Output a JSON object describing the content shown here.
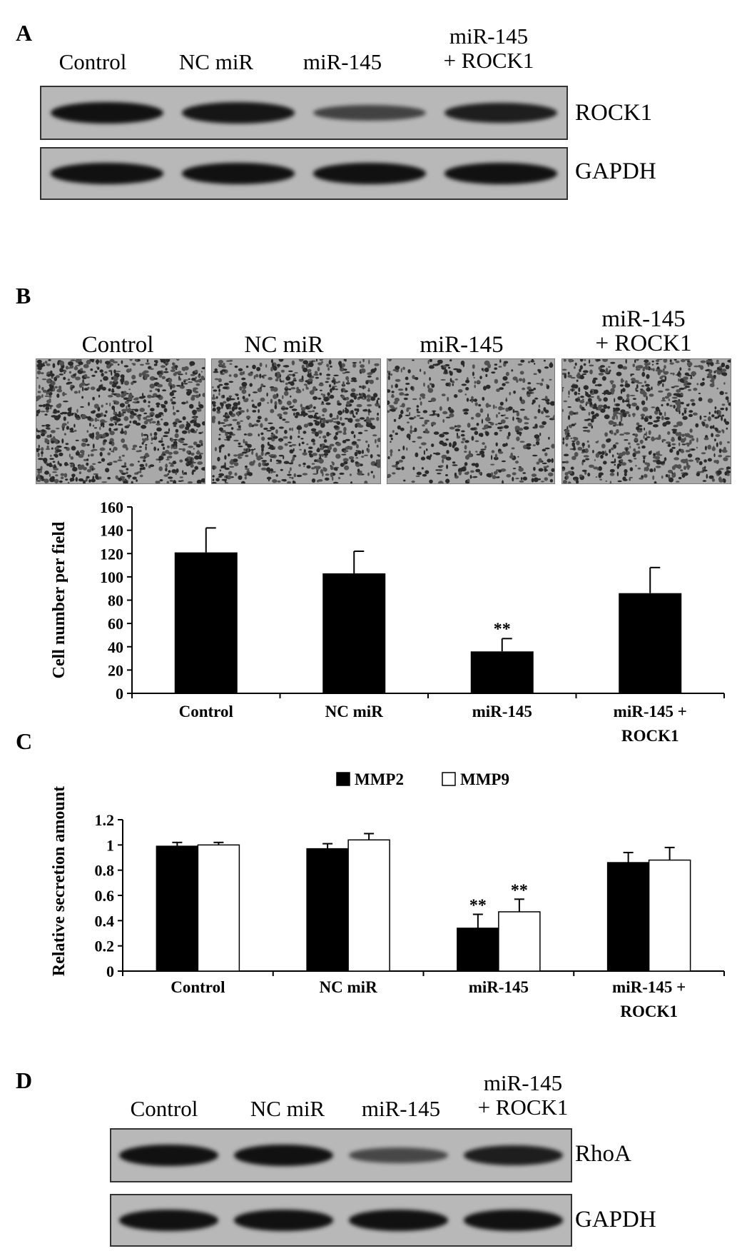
{
  "panels": {
    "A": {
      "letter": "A",
      "lanes": [
        "Control",
        "NC miR",
        "miR-145",
        "miR-145\n+ ROCK1"
      ],
      "blots": [
        {
          "label": "ROCK1",
          "intensity": [
            1.0,
            0.95,
            0.45,
            0.85
          ]
        },
        {
          "label": "GAPDH",
          "intensity": [
            1.0,
            1.0,
            1.0,
            1.0
          ]
        }
      ]
    },
    "B": {
      "letter": "B",
      "image_labels": [
        "Control",
        "NC miR",
        "miR-145",
        "miR-145\n+ ROCK1"
      ]
    },
    "C": {
      "letter": "C"
    },
    "D": {
      "letter": "D",
      "lanes": [
        "Control",
        "NC miR",
        "miR-145",
        "miR-145\n+ ROCK1"
      ],
      "blots": [
        {
          "label": "RhoA",
          "intensity": [
            1.0,
            1.0,
            0.4,
            0.85
          ]
        },
        {
          "label": "GAPDH",
          "intensity": [
            1.0,
            1.0,
            1.0,
            1.0
          ]
        }
      ]
    }
  },
  "colors": {
    "black_bar": "#000000",
    "white_bar": "#ffffff",
    "blot_bg": "#b8b8b8"
  },
  "chart_data": [
    {
      "type": "bar",
      "categories": [
        "Control",
        "NC miR",
        "miR-145",
        "miR-145 +\nROCK1"
      ],
      "values": [
        121,
        103,
        36,
        86
      ],
      "errors": [
        21,
        19,
        11,
        22
      ],
      "annotations": [
        "",
        "",
        "**",
        ""
      ],
      "ylabel": "Cell number per field",
      "xlabel": "",
      "ylim": [
        0,
        160
      ],
      "yticks": [
        0,
        20,
        40,
        60,
        80,
        100,
        120,
        140,
        160
      ],
      "grid": false
    },
    {
      "type": "bar",
      "categories": [
        "Control",
        "NC miR",
        "miR-145",
        "miR-145 +\nROCK1"
      ],
      "series": [
        {
          "name": "MMP2",
          "color": "#000000",
          "values": [
            0.99,
            0.97,
            0.34,
            0.86
          ],
          "errors": [
            0.03,
            0.04,
            0.11,
            0.08
          ],
          "annotations": [
            "",
            "",
            "**",
            ""
          ]
        },
        {
          "name": "MMP9",
          "color": "#ffffff",
          "values": [
            1.0,
            1.04,
            0.47,
            0.88
          ],
          "errors": [
            0.02,
            0.05,
            0.1,
            0.1
          ],
          "annotations": [
            "",
            "",
            "**",
            ""
          ]
        }
      ],
      "ylabel": "Relative secretion amount",
      "xlabel": "",
      "ylim": [
        0,
        1.2
      ],
      "yticks": [
        "0",
        "0.2",
        "0.4",
        "0.6",
        "0.8",
        "1",
        "1.2"
      ],
      "legend_position": "top-center",
      "grid": false
    }
  ]
}
